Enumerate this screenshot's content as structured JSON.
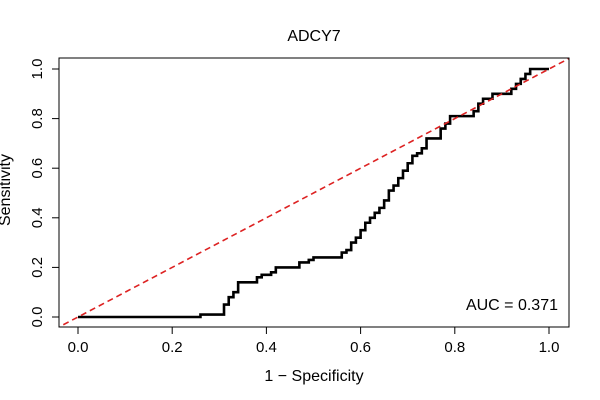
{
  "chart_data": {
    "type": "line",
    "title": "ADCY7",
    "xlabel": "1 − Specificity",
    "ylabel": "Sensitivity",
    "xlim": [
      0,
      1
    ],
    "ylim": [
      0,
      1
    ],
    "xticks": [
      "0.0",
      "0.2",
      "0.4",
      "0.6",
      "0.8",
      "1.0"
    ],
    "yticks": [
      "0.0",
      "0.2",
      "0.4",
      "0.6",
      "0.8",
      "1.0"
    ],
    "annotation": "AUC = 0.371",
    "series": [
      {
        "name": "ROC",
        "color": "#000000",
        "style": "step",
        "points": [
          [
            0.0,
            0.0
          ],
          [
            0.26,
            0.0
          ],
          [
            0.26,
            0.01
          ],
          [
            0.31,
            0.01
          ],
          [
            0.31,
            0.05
          ],
          [
            0.32,
            0.05
          ],
          [
            0.32,
            0.08
          ],
          [
            0.33,
            0.08
          ],
          [
            0.33,
            0.1
          ],
          [
            0.34,
            0.1
          ],
          [
            0.34,
            0.14
          ],
          [
            0.38,
            0.14
          ],
          [
            0.38,
            0.16
          ],
          [
            0.39,
            0.16
          ],
          [
            0.39,
            0.17
          ],
          [
            0.41,
            0.17
          ],
          [
            0.41,
            0.18
          ],
          [
            0.42,
            0.18
          ],
          [
            0.42,
            0.2
          ],
          [
            0.47,
            0.2
          ],
          [
            0.47,
            0.22
          ],
          [
            0.49,
            0.22
          ],
          [
            0.49,
            0.23
          ],
          [
            0.5,
            0.23
          ],
          [
            0.5,
            0.24
          ],
          [
            0.56,
            0.24
          ],
          [
            0.56,
            0.26
          ],
          [
            0.57,
            0.26
          ],
          [
            0.57,
            0.27
          ],
          [
            0.58,
            0.27
          ],
          [
            0.58,
            0.3
          ],
          [
            0.59,
            0.3
          ],
          [
            0.59,
            0.32
          ],
          [
            0.6,
            0.32
          ],
          [
            0.6,
            0.35
          ],
          [
            0.61,
            0.35
          ],
          [
            0.61,
            0.38
          ],
          [
            0.62,
            0.38
          ],
          [
            0.62,
            0.4
          ],
          [
            0.63,
            0.4
          ],
          [
            0.63,
            0.42
          ],
          [
            0.64,
            0.42
          ],
          [
            0.64,
            0.44
          ],
          [
            0.65,
            0.44
          ],
          [
            0.65,
            0.47
          ],
          [
            0.66,
            0.47
          ],
          [
            0.66,
            0.51
          ],
          [
            0.67,
            0.51
          ],
          [
            0.67,
            0.53
          ],
          [
            0.68,
            0.53
          ],
          [
            0.68,
            0.56
          ],
          [
            0.69,
            0.56
          ],
          [
            0.69,
            0.59
          ],
          [
            0.7,
            0.59
          ],
          [
            0.7,
            0.62
          ],
          [
            0.71,
            0.62
          ],
          [
            0.71,
            0.65
          ],
          [
            0.72,
            0.65
          ],
          [
            0.72,
            0.66
          ],
          [
            0.73,
            0.66
          ],
          [
            0.73,
            0.68
          ],
          [
            0.74,
            0.68
          ],
          [
            0.74,
            0.72
          ],
          [
            0.77,
            0.72
          ],
          [
            0.77,
            0.76
          ],
          [
            0.78,
            0.76
          ],
          [
            0.78,
            0.78
          ],
          [
            0.79,
            0.78
          ],
          [
            0.79,
            0.81
          ],
          [
            0.84,
            0.81
          ],
          [
            0.84,
            0.83
          ],
          [
            0.85,
            0.83
          ],
          [
            0.85,
            0.86
          ],
          [
            0.86,
            0.86
          ],
          [
            0.86,
            0.88
          ],
          [
            0.88,
            0.88
          ],
          [
            0.88,
            0.9
          ],
          [
            0.92,
            0.9
          ],
          [
            0.92,
            0.92
          ],
          [
            0.93,
            0.92
          ],
          [
            0.93,
            0.94
          ],
          [
            0.94,
            0.94
          ],
          [
            0.94,
            0.96
          ],
          [
            0.95,
            0.96
          ],
          [
            0.95,
            0.98
          ],
          [
            0.96,
            0.98
          ],
          [
            0.96,
            1.0
          ],
          [
            0.99,
            1.0
          ],
          [
            1.0,
            1.0
          ]
        ]
      },
      {
        "name": "Reference",
        "color": "#dd2222",
        "style": "dashed",
        "points": [
          [
            -0.05,
            -0.05
          ],
          [
            1.05,
            1.05
          ]
        ]
      }
    ]
  }
}
